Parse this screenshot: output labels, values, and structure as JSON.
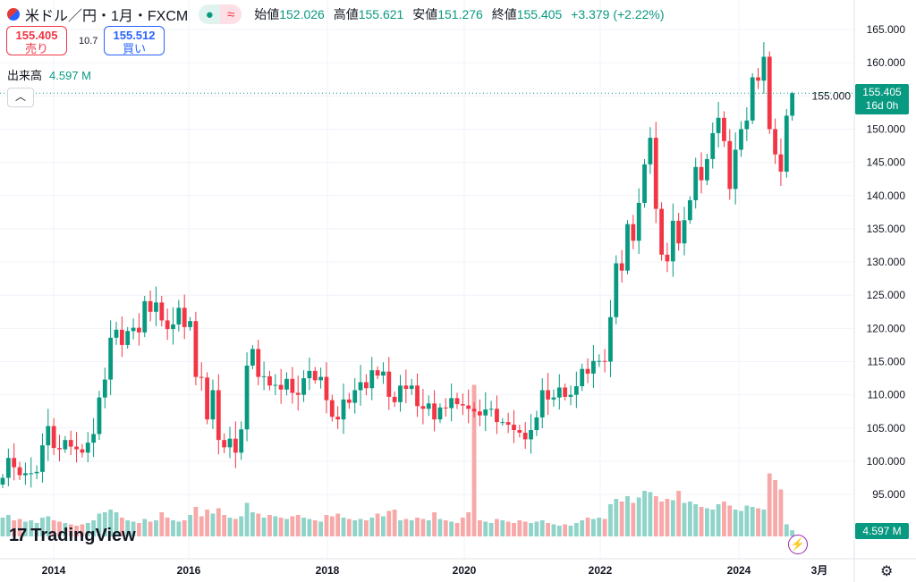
{
  "header": {
    "symbol_title": "米ドル／円・1月・FXCM",
    "open_label": "始値",
    "open": "152.026",
    "high_label": "高値",
    "high": "155.621",
    "low_label": "安値",
    "low": "151.276",
    "close_label": "終値",
    "close": "155.405",
    "change": "+3.379 (+2.22%)",
    "status_icon": "market-open-dot",
    "wave_icon": "≈"
  },
  "trade": {
    "sell_price": "155.405",
    "sell_label": "売り",
    "spread": "10.7",
    "buy_price": "155.512",
    "buy_label": "買い"
  },
  "volume": {
    "label": "出来高",
    "value": "4.597 M"
  },
  "price_tag": {
    "price": "155.405",
    "countdown": "16d 0h"
  },
  "volume_tag": "4.597 M",
  "brand": "TradingView",
  "colors": {
    "up": "#089981",
    "down": "#f23645",
    "vol_up": "#8fd3c9",
    "vol_down": "#f7a8a8"
  },
  "chart_data": {
    "type": "candlestick",
    "interval": "1M",
    "start": "2013-04",
    "yticks": [
      "165.000",
      "160.000",
      "155.000",
      "150.000",
      "145.000",
      "140.000",
      "135.000",
      "130.000",
      "125.000",
      "120.000",
      "115.000",
      "110.000",
      "105.000",
      "100.000",
      "95.000"
    ],
    "xticks": [
      "2014",
      "2016",
      "2018",
      "2020",
      "2022",
      "2024",
      "3月"
    ],
    "first_open": 96.5,
    "close": [
      97.5,
      100.5,
      99.1,
      97.9,
      98.2,
      98.2,
      98.4,
      102.4,
      105.3,
      102.0,
      101.8,
      103.2,
      102.2,
      101.8,
      101.3,
      102.8,
      104.1,
      109.6,
      112.3,
      118.6,
      119.8,
      117.5,
      119.6,
      120.1,
      119.4,
      124.1,
      122.5,
      123.9,
      121.2,
      119.9,
      120.6,
      123.1,
      120.2,
      121.1,
      112.7,
      112.6,
      106.3,
      110.7,
      103.2,
      102.1,
      103.4,
      101.3,
      104.8,
      114.4,
      116.9,
      112.7,
      112.8,
      111.4,
      111.5,
      110.8,
      112.4,
      110.3,
      110.0,
      112.5,
      113.6,
      112.2,
      112.7,
      109.2,
      106.7,
      106.3,
      109.3,
      108.8,
      110.7,
      111.9,
      111.0,
      113.7,
      112.9,
      113.5,
      109.7,
      108.9,
      111.4,
      110.9,
      111.4,
      108.3,
      107.9,
      108.7,
      106.3,
      108.1,
      108.0,
      109.5,
      108.6,
      108.4,
      107.9,
      107.5,
      106.9,
      107.8,
      107.9,
      105.9,
      105.9,
      105.5,
      104.7,
      104.3,
      103.3,
      104.7,
      106.6,
      110.7,
      109.3,
      109.6,
      111.1,
      109.7,
      110.0,
      111.3,
      113.9,
      113.2,
      115.1,
      115.1,
      115.0,
      121.7,
      129.8,
      128.7,
      135.7,
      133.2,
      138.9,
      144.7,
      148.7,
      138.0,
      131.1,
      130.1,
      136.2,
      132.8,
      136.3,
      139.3,
      144.3,
      142.3,
      145.5,
      149.4,
      151.7,
      148.2,
      141.0,
      146.9,
      150.0,
      151.3,
      157.8,
      157.3,
      160.9,
      150.0,
      146.2,
      143.6,
      152.026,
      155.405
    ],
    "last_high": 155.621,
    "last_low": 151.276,
    "volume_m": [
      14,
      16,
      12,
      13,
      11,
      12,
      10,
      14,
      15,
      12,
      11,
      10,
      9,
      8,
      9,
      10,
      12,
      17,
      18,
      20,
      18,
      14,
      12,
      11,
      10,
      13,
      11,
      12,
      18,
      14,
      12,
      11,
      12,
      16,
      22,
      15,
      20,
      17,
      21,
      16,
      14,
      13,
      15,
      25,
      18,
      17,
      14,
      16,
      15,
      14,
      13,
      15,
      16,
      14,
      13,
      12,
      11,
      16,
      15,
      17,
      14,
      13,
      12,
      13,
      12,
      14,
      17,
      15,
      19,
      20,
      12,
      13,
      12,
      14,
      13,
      12,
      18,
      13,
      12,
      11,
      10,
      14,
      18,
      113,
      12,
      11,
      10,
      13,
      12,
      11,
      10,
      12,
      11,
      10,
      11,
      12,
      10,
      9,
      8,
      9,
      8,
      10,
      12,
      14,
      13,
      14,
      13,
      24,
      28,
      26,
      30,
      25,
      29,
      34,
      33,
      30,
      26,
      28,
      27,
      34,
      25,
      26,
      24,
      22,
      21,
      20,
      24,
      26,
      23,
      20,
      19,
      23,
      22,
      21,
      20,
      47,
      42,
      35,
      9,
      4.597
    ]
  }
}
